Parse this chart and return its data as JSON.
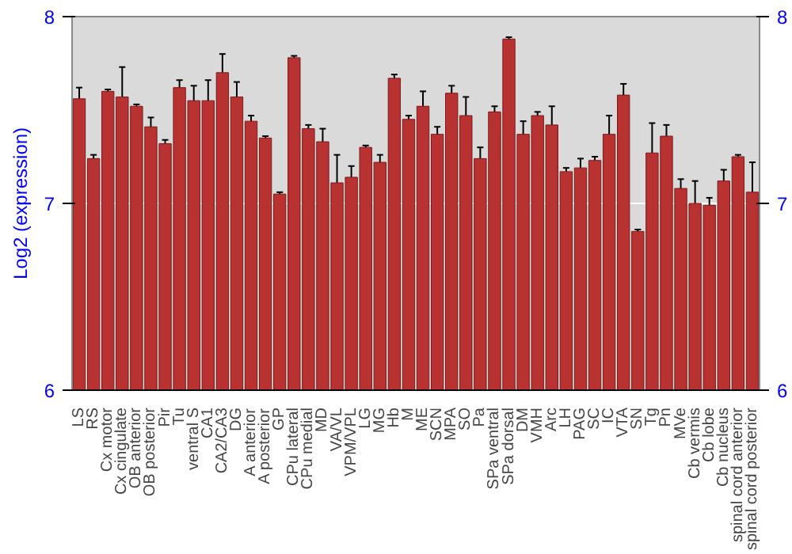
{
  "chart_data": {
    "type": "bar",
    "ylabel": "Log2 (expression)",
    "categories": [
      "LS",
      "RS",
      "Cx motor",
      "Cx cingulate",
      "OB anterior",
      "OB posterior",
      "Pir",
      "Tu",
      "ventral S",
      "CA1",
      "CA2/CA3",
      "DG",
      "A anterior",
      "A posterior",
      "GP",
      "CPu lateral",
      "CPu medial",
      "MD",
      "VA/VL",
      "VPM/VPL",
      "LG",
      "MG",
      "Hb",
      "M",
      "ME",
      "SCN",
      "MPA",
      "SO",
      "Pa",
      "SPa ventral",
      "SPa dorsal",
      "DM",
      "VMH",
      "Arc",
      "LH",
      "PAG",
      "SC",
      "IC",
      "VTA",
      "SN",
      "Tg",
      "Pn",
      "MVe",
      "Cb vermis",
      "Cb lobe",
      "Cb nucleus",
      "spinal cord anterior",
      "spinal cord posterior"
    ],
    "values": [
      7.56,
      7.24,
      7.6,
      7.57,
      7.52,
      7.41,
      7.32,
      7.62,
      7.55,
      7.55,
      7.7,
      7.57,
      7.44,
      7.35,
      7.05,
      7.78,
      7.4,
      7.33,
      7.11,
      7.14,
      7.3,
      7.22,
      7.67,
      7.45,
      7.52,
      7.37,
      7.59,
      7.47,
      7.24,
      7.49,
      7.88,
      7.37,
      7.47,
      7.42,
      7.17,
      7.19,
      7.23,
      7.37,
      7.58,
      6.85,
      7.27,
      7.36,
      7.08,
      7.0,
      6.99,
      7.12,
      7.25,
      7.06
    ],
    "errors": [
      0.06,
      0.02,
      0.01,
      0.16,
      0.01,
      0.05,
      0.02,
      0.04,
      0.08,
      0.11,
      0.1,
      0.08,
      0.03,
      0.01,
      0.01,
      0.01,
      0.02,
      0.07,
      0.15,
      0.06,
      0.01,
      0.04,
      0.02,
      0.02,
      0.08,
      0.04,
      0.04,
      0.1,
      0.06,
      0.03,
      0.01,
      0.07,
      0.02,
      0.1,
      0.02,
      0.05,
      0.02,
      0.1,
      0.06,
      0.01,
      0.16,
      0.06,
      0.05,
      0.12,
      0.04,
      0.06,
      0.01,
      0.16
    ],
    "color": "#b83232",
    "ylim": [
      6,
      8
    ],
    "yticks": [
      6,
      7,
      8
    ],
    "y2lim": [
      6,
      8
    ],
    "y2ticks": [
      6,
      7,
      8
    ],
    "grid": "y"
  }
}
